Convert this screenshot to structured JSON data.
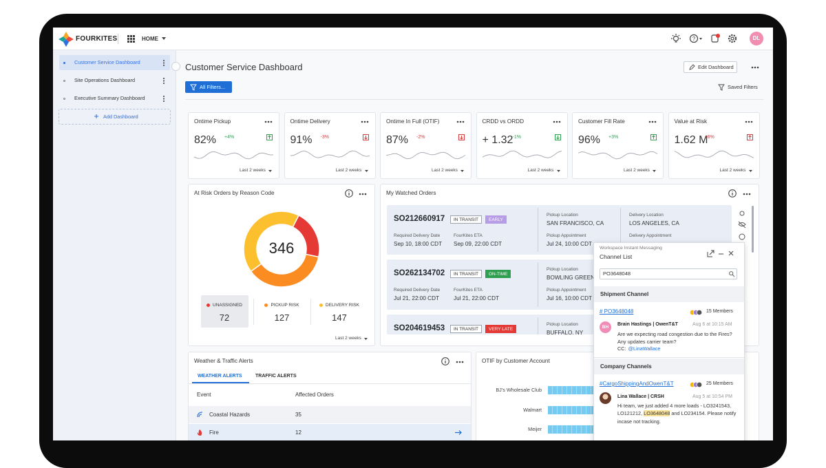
{
  "header": {
    "brand": "FOURKITES",
    "nav": "HOME",
    "avatar": "DL"
  },
  "sidebar": {
    "items": [
      "Customer Service Dashboard",
      "Site Operations Dashboard",
      "Executive Summary Dashboard"
    ],
    "add": "Add Dashboard"
  },
  "page": {
    "title": "Customer Service Dashboard",
    "edit": "Edit Dashboard",
    "filters": "All Filters...",
    "saved": "Saved Filters"
  },
  "kpis": [
    {
      "title": "Ontime Pickup",
      "value": "82%",
      "change": "+4%",
      "trend": "up",
      "status": "good",
      "period": "Last 2 weeks"
    },
    {
      "title": "Ontime Delivery",
      "value": "91%",
      "change": "-3%",
      "trend": "down",
      "status": "bad",
      "period": "Last 2 weeks"
    },
    {
      "title": "Ontime In Full (OTIF)",
      "value": "87%",
      "change": "-2%",
      "trend": "down",
      "status": "bad",
      "period": "Last 2 weeks"
    },
    {
      "title": "CRDD vs ORDD",
      "value": "+ 1.32",
      "change": "-1%",
      "trend": "down",
      "status": "good",
      "period": "Last 2 weeks"
    },
    {
      "title": "Customer Fill Rate",
      "value": "96%",
      "change": "+3%",
      "trend": "up",
      "status": "good",
      "period": "Last 2 weeks"
    },
    {
      "title": "Value at Risk",
      "value": "1.62 M",
      "change": "+6%",
      "trend": "up",
      "status": "bad",
      "period": "Last 2 weeks"
    }
  ],
  "risk": {
    "title": "At Risk Orders by Reason Code",
    "total": 346,
    "segments": [
      {
        "name": "UNASSIGNED",
        "value": 72,
        "color": "#e53935"
      },
      {
        "name": "PICKUP RISK",
        "value": 127,
        "color": "#fb8c22"
      },
      {
        "name": "DELIVERY RISK",
        "value": 147,
        "color": "#fcc02e"
      }
    ],
    "period": "Last 2 weeks"
  },
  "orders": {
    "title": "My Watched Orders",
    "rows": [
      {
        "id": "SO212660917",
        "status": "IN TRANSIT",
        "tag": "EARLY",
        "tag_color": "#b79ce6",
        "req_label": "Required Delivery Date",
        "req": "Sep 10, 18:00 CDT",
        "eta_label": "FourKites ETA",
        "eta": "Sep 09, 22:00 CDT",
        "pickup_label": "Pickup Location",
        "pickup": "SAN FRANCISCO, CA",
        "appt_label": "Pickup Appointment",
        "appt": "Jul 24, 10:00 CDT",
        "delivery_label": "Delivery Location",
        "delivery": "LOS ANGELES, CA",
        "dappt_label": "Delivery Appointment"
      },
      {
        "id": "SO262134702",
        "status": "IN TRANSIT",
        "tag": "ON-TIME",
        "tag_color": "#2e9e4f",
        "req_label": "Required Delivery Date",
        "req": "Jul 21, 22:00 CDT",
        "eta_label": "FourKites ETA",
        "eta": "Jul 21, 22:00 CDT",
        "pickup_label": "Pickup Location",
        "pickup": "BOWLING GREEN",
        "appt_label": "Pickup Appointment",
        "appt": "Jul 16, 10:00 CDT"
      },
      {
        "id": "SO204619453",
        "status": "IN TRANSIT",
        "tag": "VERY LATE",
        "tag_color": "#e53935",
        "pickup_label": "Pickup Location",
        "pickup": "BUFFALO, NY"
      }
    ]
  },
  "chat": {
    "header": "Workspace Instant Messaging",
    "title": "Channel List",
    "search": "PO3648048",
    "sections": [
      {
        "title": "Shipment Channel",
        "channel": "# PO3648048",
        "members": "15 Members",
        "initials": "BH",
        "author": "Brain Hastings | OwenT&T",
        "time": "Aug 6 at 10:15 AM",
        "message": "Are we expecting road congestion due to the Fires? Any updates carrier team?",
        "cc": "CC:",
        "mention": "@LinaWallace"
      },
      {
        "title": "Company Channels",
        "channel": "#CargoShippingAndOwenT&T",
        "members": "25 Members",
        "author": "Lina Wallace | CRSH",
        "time": "Aug 5 at 10:54 PM",
        "message_before": "Hi team, we just added 4 more loads - LO3241543, LO121212, ",
        "highlight": "LO3648048",
        "message_after": " and LO234154. Please notify incase not tracking."
      }
    ]
  },
  "alerts": {
    "title": "Weather & Traffic Alerts",
    "tabs": [
      "WEATHER ALERTS",
      "TRAFFIC ALERTS"
    ],
    "columns": [
      "Event",
      "Affected Orders"
    ],
    "rows": [
      {
        "event": "Coastal Hazards",
        "orders": 35
      },
      {
        "event": "Fire",
        "orders": 12
      }
    ]
  },
  "otif": {
    "title": "OTIF by Customer Account",
    "categories": [
      "BJ's Wholesale Club",
      "Walmart",
      "Meijer"
    ]
  }
}
